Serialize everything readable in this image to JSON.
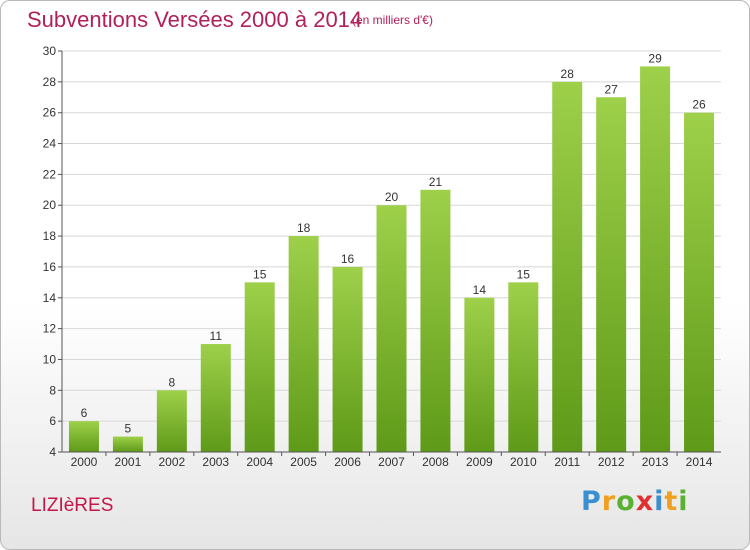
{
  "title": "Subventions Versées 2000 à 2014",
  "unit_note": "(en milliers d'€)",
  "commune": "LIZIèRES",
  "logo": {
    "text": "Proxiti",
    "letters": [
      {
        "char": "P",
        "color": "#3a8fd0"
      },
      {
        "char": "r",
        "color": "#f0a020"
      },
      {
        "char": "o",
        "color": "#5ab030"
      },
      {
        "char": "x",
        "color": "#e03030"
      },
      {
        "char": "i",
        "color": "#3a8fd0"
      },
      {
        "char": "t",
        "color": "#f0a020"
      },
      {
        "char": "i",
        "color": "#5ab030"
      }
    ]
  },
  "colors": {
    "title": "#b0205a",
    "bar_top": "#9ed04a",
    "bar_bottom": "#5e9a18",
    "grid": "#d8d8d8",
    "axis": "#555555"
  },
  "chart_data": {
    "type": "bar",
    "categories": [
      "2000",
      "2001",
      "2002",
      "2003",
      "2004",
      "2005",
      "2006",
      "2007",
      "2008",
      "2009",
      "2010",
      "2011",
      "2012",
      "2013",
      "2014"
    ],
    "values": [
      6,
      5,
      8,
      11,
      15,
      18,
      16,
      20,
      21,
      14,
      15,
      28,
      27,
      29,
      26
    ],
    "ylim": [
      4,
      30
    ],
    "yticks": [
      4,
      6,
      8,
      10,
      12,
      14,
      16,
      18,
      20,
      22,
      24,
      26,
      28,
      30
    ],
    "xlabel": "",
    "ylabel": "",
    "grid": true,
    "data_labels": true
  }
}
